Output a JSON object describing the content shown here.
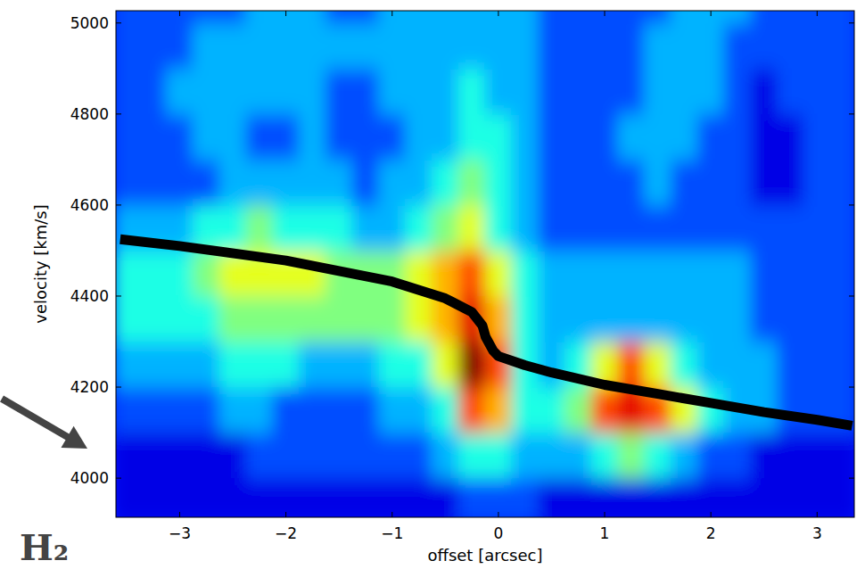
{
  "chart_data": {
    "type": "heatmap",
    "x_label": "offset [arcsec]",
    "y_label": "velocity [km/s]",
    "xlim": [
      -3.6,
      3.35
    ],
    "ylim": [
      3914,
      5027
    ],
    "xticks": [
      {
        "value": -3,
        "label": "−3"
      },
      {
        "value": -2,
        "label": "−2"
      },
      {
        "value": -1,
        "label": "−1"
      },
      0,
      1,
      2,
      3
    ],
    "yticks": [
      4000,
      4200,
      4400,
      4600,
      4800,
      5000
    ],
    "x": [
      -3.5,
      -3.25,
      -3.0,
      -2.75,
      -2.5,
      -2.25,
      -2.0,
      -1.75,
      -1.5,
      -1.25,
      -1.0,
      -0.75,
      -0.5,
      -0.25,
      0,
      0.25,
      0.5,
      0.75,
      1.0,
      1.25,
      1.5,
      1.75,
      2.0,
      2.25,
      2.5,
      2.75,
      3.0,
      3.25
    ],
    "y": [
      3950,
      4050,
      4150,
      4250,
      4350,
      4450,
      4550,
      4650,
      4750,
      4850,
      4950,
      5050
    ],
    "z_range": [
      0,
      10
    ],
    "cells": [
      [
        1,
        1,
        1,
        1,
        1,
        1,
        1,
        1,
        1,
        1,
        1,
        1,
        1,
        2,
        2,
        2,
        1,
        1,
        1,
        1,
        1,
        1,
        1,
        1,
        1,
        1,
        1,
        1
      ],
      [
        1,
        1,
        1,
        1,
        1,
        2,
        2,
        2,
        2,
        2,
        2,
        2,
        3,
        4,
        4,
        3,
        3,
        3,
        4,
        5,
        4,
        3,
        2,
        2,
        1,
        1,
        1,
        1
      ],
      [
        2,
        2,
        2,
        2,
        3,
        3,
        2,
        2,
        2,
        2,
        3,
        3,
        4,
        8,
        7,
        4,
        4,
        5,
        8,
        9,
        8,
        6,
        4,
        3,
        3,
        2,
        2,
        2
      ],
      [
        3,
        3,
        3,
        3,
        4,
        4,
        4,
        3,
        3,
        3,
        4,
        4,
        6,
        10,
        8,
        4,
        3,
        4,
        6,
        8,
        6,
        4,
        3,
        3,
        3,
        2,
        2,
        2
      ],
      [
        4,
        4,
        4,
        4,
        5,
        5,
        5,
        5,
        5,
        5,
        5,
        6,
        7,
        9,
        7,
        4,
        3,
        3,
        3,
        3,
        3,
        3,
        3,
        3,
        2,
        2,
        2,
        2
      ],
      [
        4,
        4,
        4,
        5,
        6,
        6,
        6,
        6,
        5,
        5,
        5,
        6,
        7,
        8,
        6,
        4,
        3,
        3,
        3,
        3,
        3,
        3,
        3,
        3,
        2,
        2,
        2,
        2
      ],
      [
        3,
        3,
        3,
        4,
        4,
        5,
        4,
        4,
        4,
        3,
        3,
        4,
        5,
        6,
        4,
        3,
        2,
        2,
        2,
        2,
        2,
        2,
        2,
        2,
        2,
        2,
        2,
        2
      ],
      [
        2,
        2,
        2,
        2,
        3,
        3,
        3,
        3,
        3,
        2,
        3,
        3,
        4,
        5,
        4,
        3,
        2,
        2,
        2,
        2,
        3,
        2,
        2,
        2,
        1,
        1,
        2,
        2
      ],
      [
        2,
        2,
        2,
        3,
        3,
        2,
        2,
        3,
        2,
        2,
        2,
        3,
        3,
        4,
        4,
        3,
        2,
        2,
        2,
        3,
        3,
        3,
        2,
        2,
        1,
        1,
        2,
        2
      ],
      [
        2,
        2,
        3,
        3,
        3,
        3,
        3,
        3,
        2,
        2,
        3,
        3,
        3,
        4,
        3,
        3,
        2,
        2,
        2,
        2,
        3,
        3,
        3,
        2,
        1,
        2,
        2,
        2
      ],
      [
        2,
        2,
        2,
        3,
        3,
        3,
        3,
        3,
        3,
        3,
        3,
        3,
        3,
        3,
        3,
        3,
        2,
        2,
        2,
        2,
        3,
        3,
        3,
        2,
        2,
        2,
        2,
        2
      ],
      [
        2,
        2,
        2,
        2,
        2,
        3,
        3,
        3,
        2,
        2,
        3,
        3,
        3,
        3,
        3,
        3,
        2,
        2,
        2,
        2,
        2,
        3,
        3,
        3,
        2,
        2,
        2,
        2
      ]
    ],
    "curve": {
      "color": "#000000",
      "x": [
        -3.56,
        -3.0,
        -2.0,
        -1.0,
        -0.5,
        -0.25,
        -0.15,
        -0.12,
        -0.05,
        0,
        0.25,
        0.5,
        1.0,
        1.5,
        2.0,
        2.5,
        3.0,
        3.33
      ],
      "values": [
        4525,
        4510,
        4478,
        4432,
        4395,
        4365,
        4335,
        4310,
        4280,
        4268,
        4248,
        4232,
        4205,
        4185,
        4165,
        4145,
        4128,
        4115
      ]
    },
    "annotations": [
      {
        "text": "H₂"
      }
    ]
  }
}
